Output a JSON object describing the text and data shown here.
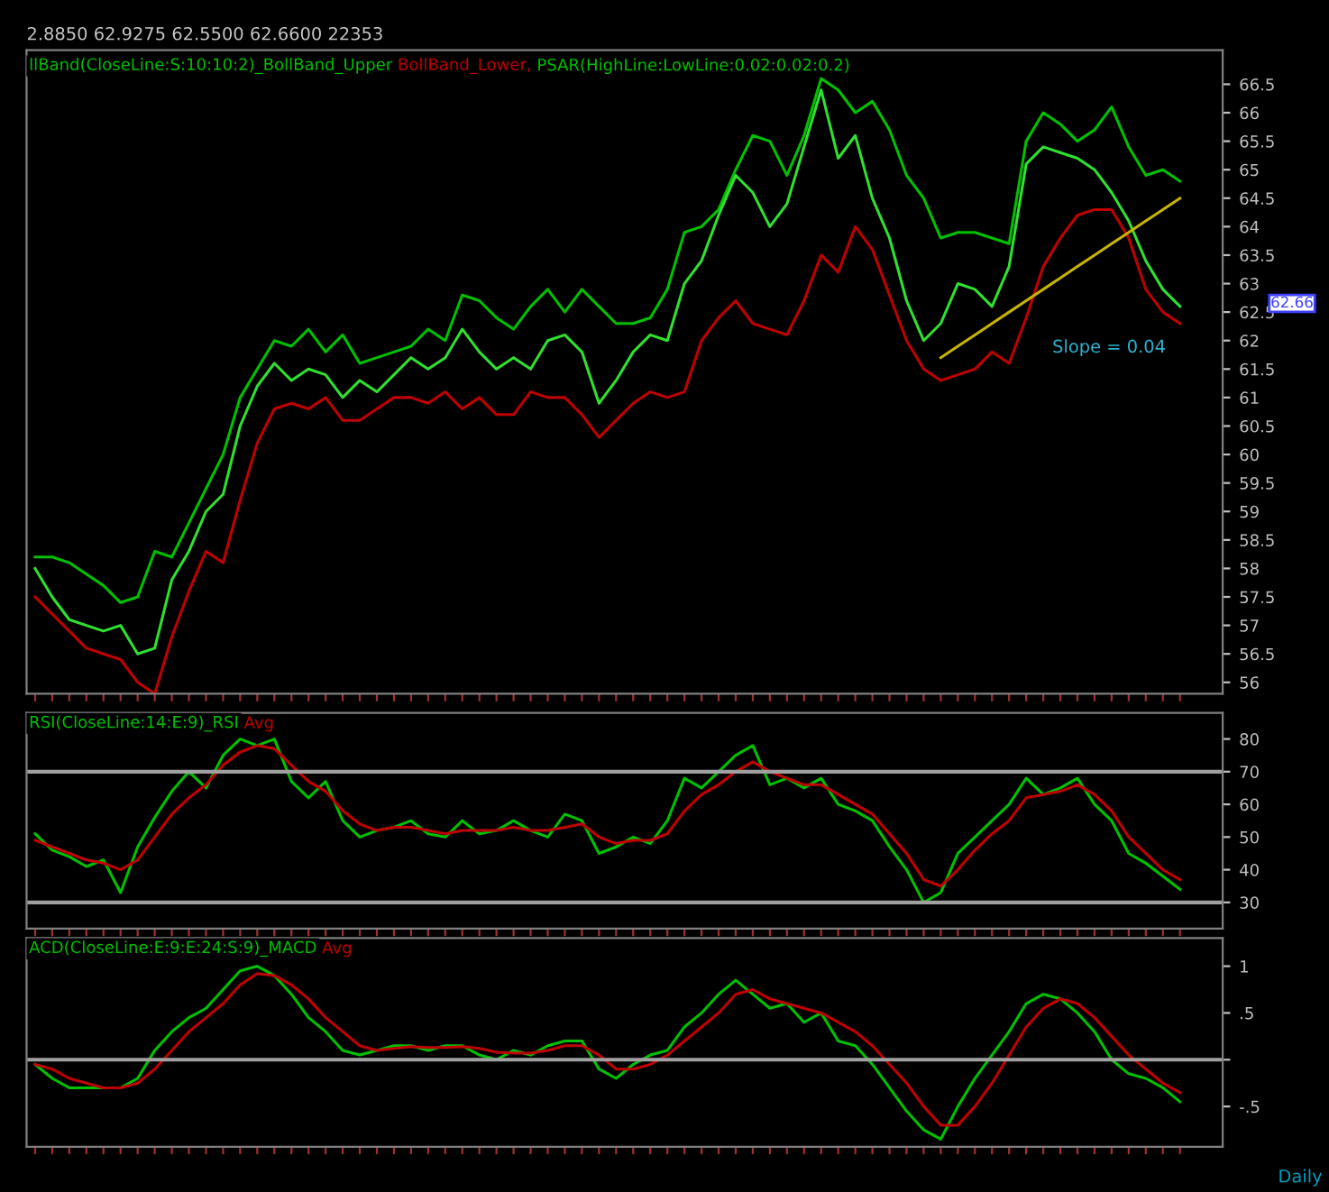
{
  "chart_data": [
    {
      "type": "line",
      "title": "2.8850 62.9275 62.5500 62.6600 22353",
      "categories": [
        null,
        null,
        null,
        null,
        null,
        null,
        null,
        null,
        null,
        null,
        null,
        null,
        null,
        null,
        null,
        null,
        null,
        null,
        null,
        null,
        null,
        null,
        null,
        null,
        null,
        null,
        null,
        null,
        null,
        null,
        null,
        null,
        null,
        null,
        null,
        null,
        null,
        null,
        null,
        null,
        null,
        null,
        null,
        null,
        null,
        null,
        null,
        null,
        null,
        null,
        null,
        null,
        null,
        null,
        null,
        null,
        null,
        null,
        null,
        null,
        null,
        null,
        null,
        null,
        null,
        null,
        null,
        null
      ],
      "series": [
        {
          "name": "llBand(CloseLine:S:10:10:2)_BollBand_Upper",
          "color": "#00c000",
          "values": [
            58.2,
            58.2,
            58.1,
            57.9,
            57.7,
            57.4,
            57.5,
            58.3,
            58.2,
            58.8,
            59.4,
            60.0,
            61.0,
            61.5,
            62.0,
            61.9,
            62.2,
            61.8,
            62.1,
            61.6,
            61.7,
            61.8,
            61.9,
            62.2,
            62.0,
            62.8,
            62.7,
            62.4,
            62.2,
            62.6,
            62.9,
            62.5,
            62.9,
            62.6,
            62.3,
            62.3,
            62.4,
            62.9,
            63.9,
            64.0,
            64.3,
            65.0,
            65.6,
            65.5,
            64.9,
            65.6,
            66.6,
            66.4,
            66.0,
            66.2,
            65.7,
            64.9,
            64.5,
            63.8,
            63.9,
            63.9,
            63.8,
            63.7,
            65.5,
            66.0,
            65.8,
            65.5,
            65.7,
            66.1,
            65.4,
            64.9,
            65.0,
            64.8
          ]
        },
        {
          "name": "BollBand_Lower,",
          "color": "#c00000",
          "values": [
            57.5,
            57.2,
            56.9,
            56.6,
            56.5,
            56.4,
            56.0,
            55.8,
            56.8,
            57.6,
            58.3,
            58.1,
            59.2,
            60.2,
            60.8,
            60.9,
            60.8,
            61.0,
            60.6,
            60.6,
            60.8,
            61.0,
            61.0,
            60.9,
            61.1,
            60.8,
            61.0,
            60.7,
            60.7,
            61.1,
            61.0,
            61.0,
            60.7,
            60.3,
            60.6,
            60.9,
            61.1,
            61.0,
            61.1,
            62.0,
            62.4,
            62.7,
            62.3,
            62.2,
            62.1,
            62.7,
            63.5,
            63.2,
            64.0,
            63.6,
            62.8,
            62.0,
            61.5,
            61.3,
            61.4,
            61.5,
            61.8,
            61.6,
            62.4,
            63.3,
            63.8,
            64.2,
            64.3,
            64.3,
            63.8,
            62.9,
            62.5,
            62.3
          ]
        },
        {
          "color": "#30e030",
          "values": [
            58.0,
            57.5,
            57.1,
            57.0,
            56.9,
            57.0,
            56.5,
            56.6,
            57.8,
            58.3,
            59.0,
            59.3,
            60.5,
            61.2,
            61.6,
            61.3,
            61.5,
            61.4,
            61.0,
            61.3,
            61.1,
            61.4,
            61.7,
            61.5,
            61.7,
            62.2,
            61.8,
            61.5,
            61.7,
            61.5,
            62.0,
            62.1,
            61.8,
            60.9,
            61.3,
            61.8,
            62.1,
            62.0,
            63.0,
            63.4,
            64.2,
            64.9,
            64.6,
            64.0,
            64.4,
            65.4,
            66.4,
            65.2,
            65.6,
            64.5,
            63.8,
            62.7,
            62.0,
            62.3,
            63.0,
            62.9,
            62.6,
            63.3,
            65.1,
            65.4,
            65.3,
            65.2,
            65.0,
            64.6,
            64.1,
            63.4,
            62.9,
            62.6
          ]
        },
        {
          "color": "#c8b400",
          "values": [
            null,
            null,
            null,
            null,
            null,
            null,
            null,
            null,
            null,
            null,
            null,
            null,
            null,
            null,
            null,
            null,
            null,
            null,
            null,
            null,
            null,
            null,
            null,
            null,
            null,
            null,
            null,
            null,
            null,
            null,
            null,
            null,
            null,
            null,
            null,
            null,
            null,
            null,
            null,
            null,
            null,
            null,
            null,
            null,
            null,
            null,
            null,
            null,
            null,
            null,
            null,
            null,
            null,
            61.7,
            61.9,
            62.1,
            62.3,
            62.5,
            62.7,
            62.9,
            63.1,
            63.3,
            63.5,
            63.7,
            63.9,
            64.1,
            64.3,
            64.5
          ]
        }
      ],
      "ylim": [
        55.8,
        67.1
      ],
      "yticks": [
        56,
        56.5,
        57,
        57.5,
        58,
        58.5,
        59,
        59.5,
        60,
        60.5,
        61,
        61.5,
        62,
        62.5,
        63,
        63.5,
        64,
        64.5,
        65,
        65.5,
        66,
        66.5
      ],
      "tick_labels": "y",
      "grid": false,
      "legend": "top left",
      "annotations": [
        "PSAR(HighLine:LowLine:0.02:0.02:0.2)",
        "Slope = 0.04",
        "62.66",
        "Daily"
      ]
    },
    {
      "type": "line",
      "categories": [
        null,
        null,
        null,
        null,
        null,
        null,
        null,
        null,
        null,
        null,
        null,
        null,
        null,
        null,
        null,
        null,
        null,
        null,
        null,
        null,
        null,
        null,
        null,
        null,
        null,
        null,
        null,
        null,
        null,
        null,
        null,
        null,
        null,
        null,
        null,
        null,
        null,
        null,
        null,
        null,
        null,
        null,
        null,
        null,
        null,
        null,
        null,
        null,
        null,
        null,
        null,
        null,
        null,
        null,
        null,
        null,
        null,
        null,
        null,
        null,
        null,
        null,
        null,
        null,
        null,
        null,
        null,
        null
      ],
      "series": [
        {
          "name": "RSI(CloseLine:14:E:9)_RSI",
          "color": "#00c000",
          "values": [
            51,
            46,
            44,
            41,
            43,
            33,
            47,
            56,
            64,
            70,
            65,
            75,
            80,
            78,
            80,
            67,
            62,
            67,
            55,
            50,
            52,
            53,
            55,
            51,
            50,
            55,
            51,
            52,
            55,
            52,
            50,
            57,
            55,
            45,
            47,
            50,
            48,
            55,
            68,
            65,
            70,
            75,
            78,
            66,
            68,
            65,
            68,
            60,
            58,
            55,
            47,
            40,
            30,
            33,
            45,
            50,
            55,
            60,
            68,
            63,
            65,
            68,
            60,
            55,
            45,
            42,
            38,
            34
          ]
        },
        {
          "name": "Avg",
          "color": "#c00000",
          "values": [
            49,
            47,
            45,
            43,
            42,
            40,
            43,
            50,
            57,
            62,
            66,
            72,
            76,
            78,
            77,
            72,
            67,
            64,
            58,
            54,
            52,
            53,
            53,
            52,
            51,
            52,
            52,
            52,
            53,
            52,
            52,
            53,
            54,
            50,
            48,
            49,
            49,
            51,
            58,
            63,
            66,
            70,
            73,
            70,
            68,
            66,
            66,
            63,
            60,
            57,
            51,
            45,
            37,
            35,
            40,
            46,
            51,
            55,
            62,
            63,
            64,
            66,
            63,
            58,
            50,
            45,
            40,
            37
          ]
        }
      ],
      "ylim": [
        22,
        88
      ],
      "yticks": [
        30,
        40,
        50,
        60,
        70,
        80
      ],
      "tick_labels": "y",
      "grid": false,
      "legend": "top left",
      "ref_lines": [
        {
          "axis": "y",
          "value": 70,
          "color": "#a0a0a0"
        },
        {
          "axis": "y",
          "value": 30,
          "color": "#a0a0a0"
        }
      ]
    },
    {
      "type": "line",
      "categories": [
        null,
        null,
        null,
        null,
        null,
        null,
        null,
        null,
        null,
        null,
        null,
        null,
        null,
        null,
        null,
        null,
        null,
        null,
        null,
        null,
        null,
        null,
        null,
        null,
        null,
        null,
        null,
        null,
        null,
        null,
        null,
        null,
        null,
        null,
        null,
        null,
        null,
        null,
        null,
        null,
        null,
        null,
        null,
        null,
        null,
        null,
        null,
        null,
        null,
        null,
        null,
        null,
        null,
        null,
        null,
        null,
        null,
        null,
        null,
        null,
        null,
        null,
        null,
        null,
        null,
        null,
        null,
        null
      ],
      "series": [
        {
          "name": "ACD(CloseLine:E:9:E:24:S:9)_MACD",
          "color": "#00c000",
          "values": [
            -0.05,
            -0.2,
            -0.3,
            -0.3,
            -0.3,
            -0.3,
            -0.2,
            0.1,
            0.3,
            0.45,
            0.55,
            0.75,
            0.95,
            1.0,
            0.9,
            0.7,
            0.45,
            0.3,
            0.1,
            0.05,
            0.1,
            0.15,
            0.15,
            0.1,
            0.15,
            0.15,
            0.05,
            0.0,
            0.1,
            0.05,
            0.15,
            0.2,
            0.2,
            -0.1,
            -0.2,
            -0.05,
            0.05,
            0.1,
            0.35,
            0.5,
            0.7,
            0.85,
            0.7,
            0.55,
            0.6,
            0.4,
            0.5,
            0.2,
            0.15,
            -0.05,
            -0.3,
            -0.55,
            -0.75,
            -0.85,
            -0.5,
            -0.2,
            0.05,
            0.3,
            0.6,
            0.7,
            0.65,
            0.5,
            0.3,
            0.0,
            -0.15,
            -0.2,
            -0.3,
            -0.45
          ]
        },
        {
          "name": "Avg",
          "color": "#c00000",
          "values": [
            -0.05,
            -0.1,
            -0.2,
            -0.25,
            -0.3,
            -0.3,
            -0.25,
            -0.1,
            0.1,
            0.3,
            0.45,
            0.6,
            0.8,
            0.92,
            0.9,
            0.8,
            0.65,
            0.45,
            0.3,
            0.15,
            0.1,
            0.12,
            0.14,
            0.13,
            0.13,
            0.14,
            0.12,
            0.08,
            0.07,
            0.07,
            0.1,
            0.15,
            0.15,
            0.05,
            -0.1,
            -0.1,
            -0.05,
            0.05,
            0.2,
            0.35,
            0.5,
            0.7,
            0.75,
            0.65,
            0.6,
            0.55,
            0.5,
            0.4,
            0.3,
            0.15,
            -0.05,
            -0.25,
            -0.5,
            -0.7,
            -0.7,
            -0.5,
            -0.25,
            0.05,
            0.35,
            0.55,
            0.65,
            0.6,
            0.45,
            0.25,
            0.05,
            -0.1,
            -0.25,
            -0.35
          ]
        }
      ],
      "ylim": [
        -0.93,
        1.3
      ],
      "yticks": [
        {
          "value": 1,
          "label": "1"
        },
        {
          "value": 0.5,
          "label": ".5"
        },
        {
          "value": 0,
          "label": null
        },
        {
          "value": -0.5,
          "label": "-.5"
        }
      ],
      "tick_labels": "y",
      "grid": false,
      "legend": "top left",
      "ref_lines": [
        {
          "axis": "y",
          "value": 0,
          "color": "#a0a0a0"
        }
      ]
    }
  ]
}
